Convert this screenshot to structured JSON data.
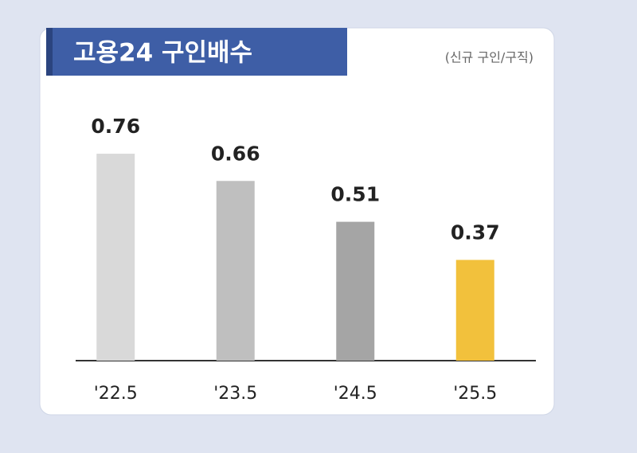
{
  "chart_data": {
    "type": "bar",
    "title": "고용24 구인배수",
    "subtitle": "(신규 구인/구직)",
    "categories": [
      "'22.5",
      "'23.5",
      "'24.5",
      "'25.5"
    ],
    "values": [
      0.76,
      0.66,
      0.51,
      0.37
    ],
    "colors": [
      "#d9d9d9",
      "#bfbfbf",
      "#a5a5a5",
      "#f2c13c"
    ]
  }
}
